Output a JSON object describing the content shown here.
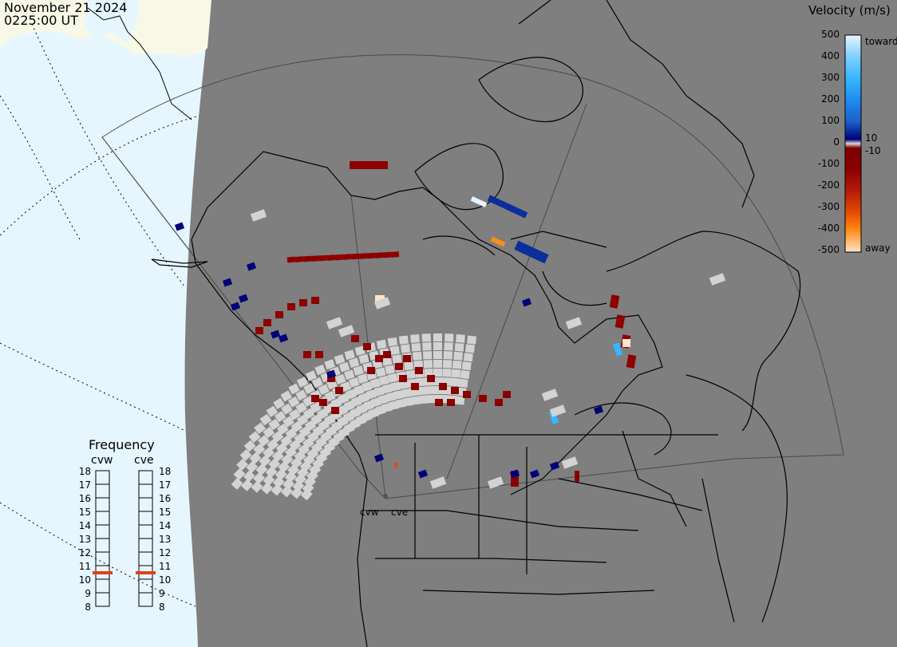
{
  "header": {
    "date": "November 21 2024",
    "time": "0225:00 UT"
  },
  "legend": {
    "title": "Velocity (m/s)",
    "ticks": [
      "500",
      "400",
      "300",
      "200",
      "100",
      "0",
      "-100",
      "-200",
      "-300",
      "-400",
      "-500"
    ],
    "inner_positive": "10",
    "inner_negative": "-10",
    "toward_label": "toward",
    "away_label": "away",
    "colors": {
      "toward_max": "#e6f5ff",
      "v400": "#35b6ff",
      "v300": "#1e8cf0",
      "v200": "#1c5fc8",
      "v100": "#0a2f9a",
      "v10": "#00007a",
      "zero": "#d9d9d9",
      "n10": "#7a0000",
      "n100": "#8c0000",
      "n200": "#b51d0a",
      "n300": "#e64d00",
      "n400": "#ff8c1a",
      "away_max": "#ffe3c8"
    }
  },
  "frequency": {
    "title": "Frequency",
    "radars": [
      {
        "name": "cvw",
        "selected_mhz": "11"
      },
      {
        "name": "cve",
        "selected_mhz": "11"
      }
    ],
    "scale": [
      "18",
      "17",
      "16",
      "15",
      "14",
      "13",
      "12",
      "11",
      "10",
      "9",
      "8"
    ],
    "marker_color": "#e0401a"
  },
  "sites": {
    "west": "cvw",
    "east": "cve"
  },
  "map_colors": {
    "ocean": "#e6f6ff",
    "ice": "#f8f8e6",
    "night": "#7f7f7f",
    "ground_scatter": "#d3d3d3",
    "land_outline": "#000000"
  }
}
